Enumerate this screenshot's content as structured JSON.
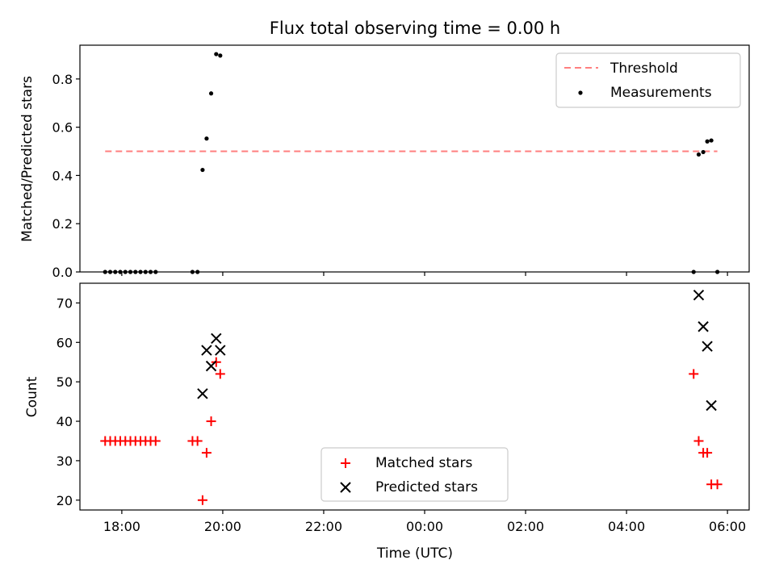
{
  "chart_data": [
    {
      "type": "scatter",
      "title": "Flux total observing time = 0.00 h",
      "ylabel": "Matched/Predicted stars",
      "xlabel": "",
      "xlim_hours": [
        17.17,
        30.43
      ],
      "ylim": [
        0,
        0.94
      ],
      "yticks": [
        0.0,
        0.2,
        0.4,
        0.6,
        0.8
      ],
      "ytick_labels": [
        "0.0",
        "0.2",
        "0.4",
        "0.6",
        "0.8"
      ],
      "legend_position": "top-right",
      "threshold": {
        "name": "Threshold",
        "value": 0.5,
        "x_range": [
          17.67,
          29.8
        ],
        "color": "#ff7f7f",
        "style": "dashed"
      },
      "series": [
        {
          "name": "Measurements",
          "marker": "dot",
          "color": "#000000",
          "x": [
            17.67,
            17.77,
            17.87,
            17.97,
            18.07,
            18.17,
            18.27,
            18.37,
            18.47,
            18.57,
            18.67,
            19.4,
            19.5,
            19.6,
            19.68,
            19.77,
            19.87,
            19.95,
            29.33,
            29.43,
            29.52,
            29.6,
            29.68,
            29.8
          ],
          "y": [
            0,
            0,
            0,
            0,
            0,
            0,
            0,
            0,
            0,
            0,
            0,
            0,
            0,
            0.423,
            0.553,
            0.74,
            0.903,
            0.897,
            0,
            0.487,
            0.497,
            0.541,
            0.545,
            0
          ]
        }
      ]
    },
    {
      "type": "scatter",
      "title": "",
      "ylabel": "Count",
      "xlabel": "Time (UTC)",
      "xlim_hours": [
        17.17,
        30.43
      ],
      "xticks_hours": [
        18,
        20,
        22,
        24,
        26,
        28,
        30
      ],
      "xtick_labels": [
        "18:00",
        "20:00",
        "22:00",
        "00:00",
        "02:00",
        "04:00",
        "06:00"
      ],
      "ylim": [
        17.5,
        75
      ],
      "yticks": [
        20,
        30,
        40,
        50,
        60,
        70
      ],
      "ytick_labels": [
        "20",
        "30",
        "40",
        "50",
        "60",
        "70"
      ],
      "legend_position": "lower-center",
      "series": [
        {
          "name": "Matched stars",
          "marker": "plus",
          "color": "#ff0000",
          "x": [
            17.67,
            17.77,
            17.87,
            17.97,
            18.07,
            18.17,
            18.27,
            18.37,
            18.47,
            18.57,
            18.67,
            19.4,
            19.5,
            19.6,
            19.68,
            19.77,
            19.87,
            19.95,
            29.33,
            29.43,
            29.52,
            29.6,
            29.68,
            29.8
          ],
          "y": [
            35,
            35,
            35,
            35,
            35,
            35,
            35,
            35,
            35,
            35,
            35,
            35,
            35,
            20,
            32,
            40,
            55,
            52,
            52,
            35,
            32,
            32,
            24,
            24
          ]
        },
        {
          "name": "Predicted stars",
          "marker": "x",
          "color": "#000000",
          "x": [
            19.6,
            19.68,
            19.77,
            19.87,
            19.95,
            29.43,
            29.52,
            29.6,
            29.68
          ],
          "y": [
            47,
            58,
            54,
            61,
            58,
            72,
            64,
            59,
            44
          ]
        }
      ]
    }
  ]
}
